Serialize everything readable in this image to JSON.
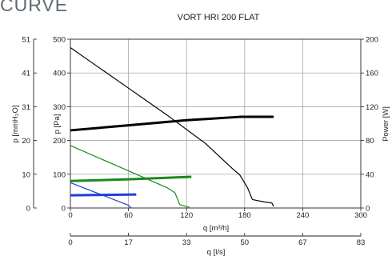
{
  "heading": "CURVE",
  "chart_data": {
    "type": "line",
    "title": "VORT HRI 200 FLAT",
    "x_axis": {
      "label": "q [m³/h]",
      "range": [
        0,
        300
      ],
      "ticks": [
        "0",
        "60",
        "120",
        "180",
        "240",
        "300"
      ]
    },
    "x2_axis": {
      "label": "q [l/s]",
      "range": [
        0,
        83
      ],
      "ticks": [
        "0",
        "17",
        "33",
        "50",
        "67",
        "83"
      ]
    },
    "y_axis": {
      "label": "p [Pa]",
      "range": [
        0,
        500
      ],
      "ticks": [
        "0",
        "100",
        "200",
        "300",
        "400",
        "500"
      ]
    },
    "y_outer_axis": {
      "label": "p [mmH₂O]",
      "range": [
        0,
        51
      ],
      "ticks": [
        "0",
        "10",
        "20",
        "31",
        "41",
        "51"
      ]
    },
    "y2_axis": {
      "label": "Power [W]",
      "range": [
        0,
        200
      ],
      "ticks": [
        "0",
        "40",
        "80",
        "120",
        "160",
        "200"
      ]
    },
    "grid": true,
    "series": [
      {
        "axis": "pressure",
        "color": "#000000",
        "width": 1.2,
        "points": [
          [
            0,
            475
          ],
          [
            20,
            435
          ],
          [
            60,
            355
          ],
          [
            100,
            275
          ],
          [
            140,
            190
          ],
          [
            168,
            115
          ],
          [
            175,
            98
          ],
          [
            183,
            60
          ],
          [
            188,
            25
          ],
          [
            200,
            18
          ],
          [
            208,
            15
          ],
          [
            210,
            5
          ]
        ]
      },
      {
        "axis": "power",
        "color": "#000000",
        "width": 3,
        "points": [
          [
            0,
            92
          ],
          [
            60,
            98
          ],
          [
            120,
            104
          ],
          [
            175,
            108
          ],
          [
            210,
            108
          ]
        ]
      },
      {
        "axis": "pressure",
        "color": "#1a8a1a",
        "width": 1.2,
        "points": [
          [
            0,
            185
          ],
          [
            60,
            110
          ],
          [
            100,
            60
          ],
          [
            108,
            45
          ],
          [
            113,
            10
          ],
          [
            123,
            2
          ]
        ]
      },
      {
        "axis": "power",
        "color": "#1a8a1a",
        "width": 3,
        "points": [
          [
            0,
            32
          ],
          [
            60,
            34
          ],
          [
            125,
            37
          ]
        ]
      },
      {
        "axis": "pressure",
        "color": "#1f3fd6",
        "width": 1.2,
        "points": [
          [
            0,
            75
          ],
          [
            60,
            8
          ],
          [
            62,
            2
          ],
          [
            63,
            0
          ]
        ]
      },
      {
        "axis": "power",
        "color": "#1f3fd6",
        "width": 3,
        "points": [
          [
            0,
            15
          ],
          [
            68,
            16
          ]
        ]
      }
    ]
  }
}
